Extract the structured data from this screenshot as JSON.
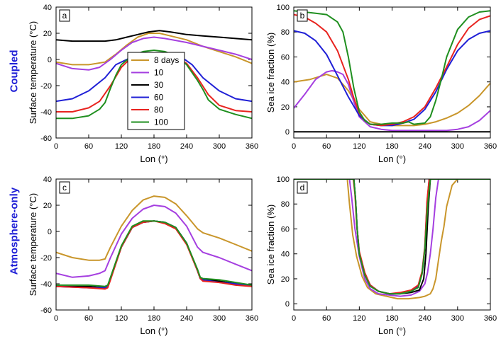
{
  "row_labels": [
    "Coupled",
    "Atmosphere-only"
  ],
  "colors": {
    "8 days": "#c9962b",
    "10": "#a53fe0",
    "30": "#000000",
    "60": "#1f1fd6",
    "80": "#e8231f",
    "100": "#1f8f1f"
  },
  "legend_entries": [
    "8 days",
    "10",
    "30",
    "60",
    "80",
    "100"
  ],
  "chart_data": [
    {
      "panel": "a",
      "type": "line",
      "xlabel": "Lon (°)",
      "ylabel": "Surface temperature (°C)",
      "xlim": [
        0,
        360
      ],
      "ylim": [
        -60,
        40
      ],
      "xticks": [
        0,
        60,
        120,
        180,
        240,
        300,
        360
      ],
      "yticks": [
        -60,
        -40,
        -20,
        0,
        20,
        40
      ],
      "legend": "center",
      "series": [
        {
          "name": "8 days",
          "x": [
            0,
            30,
            60,
            90,
            110,
            130,
            150,
            170,
            190,
            210,
            240,
            270,
            300,
            330,
            360
          ],
          "y": [
            -2,
            -4,
            -4,
            -2,
            4,
            11,
            17,
            20,
            20,
            18,
            15,
            10,
            6,
            2,
            -3
          ]
        },
        {
          "name": "10",
          "x": [
            0,
            30,
            60,
            80,
            100,
            120,
            140,
            160,
            180,
            200,
            240,
            270,
            300,
            330,
            360
          ],
          "y": [
            -3,
            -7,
            -8,
            -6,
            0,
            7,
            13,
            16,
            17,
            16,
            13,
            10,
            7,
            4,
            0
          ]
        },
        {
          "name": "30",
          "x": [
            0,
            30,
            60,
            90,
            110,
            130,
            150,
            170,
            190,
            210,
            240,
            270,
            300,
            330,
            360
          ],
          "y": [
            15,
            14,
            14,
            14,
            15,
            17,
            19,
            21,
            22,
            21,
            19,
            18,
            17,
            16,
            15
          ]
        },
        {
          "name": "60",
          "x": [
            0,
            30,
            60,
            90,
            110,
            130,
            150,
            170,
            190,
            210,
            230,
            250,
            270,
            300,
            330,
            360
          ],
          "y": [
            -32,
            -30,
            -24,
            -14,
            -4,
            0,
            3,
            5,
            5,
            4,
            2,
            -4,
            -14,
            -24,
            -30,
            -32
          ]
        },
        {
          "name": "80",
          "x": [
            0,
            30,
            60,
            80,
            100,
            120,
            140,
            160,
            180,
            200,
            220,
            240,
            260,
            280,
            300,
            330,
            360
          ],
          "y": [
            -40,
            -40,
            -37,
            -32,
            -20,
            -6,
            2,
            4,
            5,
            4,
            2,
            -3,
            -14,
            -27,
            -35,
            -39,
            -40
          ]
        },
        {
          "name": "100",
          "x": [
            0,
            30,
            60,
            80,
            90,
            100,
            110,
            120,
            140,
            160,
            180,
            200,
            220,
            240,
            260,
            270,
            280,
            300,
            330,
            360
          ],
          "y": [
            -45,
            -45,
            -43,
            -38,
            -33,
            -22,
            -12,
            -4,
            3,
            6,
            7,
            6,
            3,
            -4,
            -16,
            -23,
            -31,
            -38,
            -42,
            -45
          ]
        }
      ]
    },
    {
      "panel": "b",
      "type": "line",
      "xlabel": "Lon (°)",
      "ylabel": "Sea ice fraction (%)",
      "xlim": [
        0,
        360
      ],
      "ylim": [
        -5,
        100
      ],
      "xticks": [
        0,
        60,
        120,
        180,
        240,
        300,
        360
      ],
      "yticks": [
        0,
        20,
        40,
        60,
        80,
        100
      ],
      "series": [
        {
          "name": "8 days",
          "x": [
            0,
            30,
            60,
            80,
            100,
            120,
            140,
            160,
            180,
            200,
            220,
            240,
            260,
            280,
            300,
            320,
            340,
            360
          ],
          "y": [
            40,
            42,
            46,
            43,
            33,
            18,
            8,
            6,
            5,
            5,
            5,
            6,
            8,
            11,
            15,
            21,
            29,
            39
          ]
        },
        {
          "name": "10",
          "x": [
            0,
            20,
            40,
            60,
            70,
            80,
            90,
            100,
            110,
            120,
            140,
            160,
            180,
            200,
            240,
            280,
            300,
            320,
            340,
            360
          ],
          "y": [
            19,
            30,
            42,
            48,
            49,
            48,
            46,
            38,
            24,
            12,
            4,
            2,
            1,
            1,
            1,
            1,
            2,
            4,
            9,
            17
          ]
        },
        {
          "name": "30",
          "x": [
            0,
            360
          ],
          "y": [
            0,
            0
          ]
        },
        {
          "name": "60",
          "x": [
            0,
            20,
            40,
            60,
            80,
            100,
            120,
            140,
            160,
            180,
            200,
            220,
            240,
            260,
            280,
            300,
            320,
            340,
            360
          ],
          "y": [
            81,
            79,
            73,
            62,
            45,
            28,
            13,
            6,
            5,
            5,
            7,
            10,
            18,
            32,
            50,
            65,
            74,
            79,
            81
          ]
        },
        {
          "name": "80",
          "x": [
            0,
            20,
            40,
            60,
            80,
            100,
            110,
            120,
            130,
            140,
            160,
            180,
            200,
            220,
            240,
            260,
            280,
            300,
            320,
            340,
            360
          ],
          "y": [
            94,
            92,
            87,
            80,
            65,
            42,
            27,
            15,
            9,
            6,
            5,
            6,
            8,
            12,
            20,
            35,
            52,
            70,
            83,
            90,
            93
          ]
        },
        {
          "name": "100",
          "x": [
            0,
            20,
            40,
            60,
            80,
            90,
            100,
            110,
            120,
            130,
            140,
            160,
            180,
            200,
            210,
            220,
            240,
            250,
            260,
            270,
            280,
            300,
            320,
            340,
            360
          ],
          "y": [
            97,
            96,
            95,
            94,
            88,
            80,
            60,
            35,
            16,
            9,
            6,
            6,
            7,
            7,
            8,
            6,
            7,
            12,
            25,
            42,
            60,
            82,
            92,
            96,
            97
          ]
        }
      ]
    },
    {
      "panel": "c",
      "type": "line",
      "xlabel": "Lon (°)",
      "ylabel": "Surface temperature (°C)",
      "xlim": [
        0,
        360
      ],
      "ylim": [
        -60,
        40
      ],
      "xticks": [
        0,
        60,
        120,
        180,
        240,
        300,
        360
      ],
      "yticks": [
        -60,
        -40,
        -20,
        0,
        20,
        40
      ],
      "series": [
        {
          "name": "8 days",
          "x": [
            0,
            30,
            60,
            80,
            90,
            100,
            120,
            140,
            160,
            180,
            200,
            220,
            240,
            260,
            270,
            300,
            330,
            360
          ],
          "y": [
            -16,
            -20,
            -22,
            -22,
            -21,
            -12,
            4,
            16,
            24,
            27,
            26,
            21,
            12,
            2,
            -1,
            -5,
            -10,
            -15
          ]
        },
        {
          "name": "10",
          "x": [
            0,
            30,
            60,
            80,
            90,
            100,
            120,
            140,
            160,
            180,
            200,
            220,
            240,
            260,
            270,
            300,
            330,
            360
          ],
          "y": [
            -32,
            -35,
            -34,
            -32,
            -30,
            -20,
            -2,
            10,
            17,
            20,
            19,
            14,
            4,
            -12,
            -16,
            -20,
            -25,
            -30
          ]
        },
        {
          "name": "30",
          "x": [
            0,
            60,
            90,
            95,
            100,
            120,
            140,
            160,
            180,
            200,
            220,
            240,
            260,
            265,
            270,
            300,
            330,
            360
          ],
          "y": [
            -42,
            -42,
            -43,
            -42,
            -36,
            -12,
            3,
            7,
            8,
            7,
            3,
            -9,
            -30,
            -36,
            -37,
            -38,
            -40,
            -41
          ]
        },
        {
          "name": "60",
          "x": [
            0,
            60,
            90,
            95,
            100,
            120,
            140,
            160,
            180,
            200,
            220,
            240,
            260,
            265,
            270,
            300,
            330,
            360
          ],
          "y": [
            -42,
            -43,
            -43,
            -42,
            -36,
            -12,
            3,
            7,
            8,
            7,
            3,
            -9,
            -30,
            -36,
            -37,
            -39,
            -40,
            -42
          ]
        },
        {
          "name": "80",
          "x": [
            0,
            60,
            90,
            95,
            100,
            120,
            140,
            160,
            180,
            200,
            220,
            240,
            260,
            265,
            270,
            300,
            330,
            360
          ],
          "y": [
            -42,
            -43,
            -44,
            -43,
            -37,
            -12,
            3,
            7,
            8,
            6,
            2,
            -10,
            -30,
            -36,
            -38,
            -39,
            -41,
            -42
          ]
        },
        {
          "name": "100",
          "x": [
            0,
            60,
            90,
            95,
            100,
            120,
            140,
            160,
            180,
            200,
            220,
            240,
            260,
            265,
            270,
            300,
            330,
            360
          ],
          "y": [
            -41,
            -41,
            -42,
            -41,
            -35,
            -11,
            4,
            8,
            8,
            7,
            3,
            -9,
            -29,
            -35,
            -36,
            -37,
            -39,
            -41
          ]
        }
      ]
    },
    {
      "panel": "d",
      "type": "line",
      "xlabel": "Lon (°)",
      "ylabel": "Sea ice fraction (%)",
      "xlim": [
        0,
        360
      ],
      "ylim": [
        -5,
        100
      ],
      "xticks": [
        0,
        60,
        120,
        180,
        240,
        300,
        360
      ],
      "yticks": [
        0,
        20,
        40,
        60,
        80,
        100
      ],
      "series": [
        {
          "name": "8 days",
          "x": [
            0,
            98,
            102,
            108,
            115,
            125,
            135,
            150,
            170,
            190,
            210,
            230,
            240,
            250,
            255,
            260,
            265,
            270,
            275,
            280,
            290,
            300,
            360
          ],
          "y": [
            100,
            100,
            80,
            55,
            38,
            22,
            13,
            8,
            6,
            4,
            4,
            5,
            6,
            8,
            12,
            20,
            35,
            50,
            62,
            78,
            95,
            100,
            100
          ]
        },
        {
          "name": "10",
          "x": [
            0,
            102,
            106,
            112,
            120,
            130,
            140,
            155,
            175,
            195,
            215,
            230,
            240,
            245,
            250,
            255,
            260,
            265,
            270,
            360
          ],
          "y": [
            100,
            100,
            85,
            60,
            38,
            20,
            12,
            8,
            7,
            6,
            7,
            10,
            16,
            25,
            40,
            60,
            85,
            100,
            100,
            100
          ]
        },
        {
          "name": "30",
          "x": [
            0,
            110,
            113,
            116,
            120,
            130,
            140,
            155,
            175,
            195,
            215,
            230,
            238,
            242,
            246,
            250,
            360
          ],
          "y": [
            100,
            100,
            85,
            60,
            40,
            24,
            15,
            10,
            8,
            8,
            9,
            11,
            20,
            40,
            75,
            100,
            100
          ]
        },
        {
          "name": "60",
          "x": [
            0,
            110,
            113,
            116,
            120,
            130,
            140,
            155,
            175,
            195,
            215,
            228,
            235,
            240,
            244,
            248,
            360
          ],
          "y": [
            100,
            100,
            85,
            60,
            40,
            24,
            15,
            10,
            8,
            8,
            10,
            14,
            25,
            45,
            80,
            100,
            100
          ]
        },
        {
          "name": "80",
          "x": [
            0,
            109,
            112,
            115,
            120,
            130,
            140,
            155,
            175,
            195,
            215,
            228,
            235,
            240,
            244,
            248,
            360
          ],
          "y": [
            100,
            100,
            88,
            65,
            42,
            25,
            15,
            10,
            8,
            9,
            11,
            15,
            26,
            46,
            82,
            100,
            100
          ]
        },
        {
          "name": "100",
          "x": [
            0,
            110,
            113,
            116,
            120,
            130,
            140,
            155,
            175,
            195,
            215,
            228,
            235,
            240,
            245,
            250,
            360
          ],
          "y": [
            100,
            100,
            85,
            60,
            40,
            23,
            14,
            10,
            8,
            8,
            10,
            13,
            24,
            44,
            78,
            100,
            100
          ]
        }
      ]
    }
  ]
}
